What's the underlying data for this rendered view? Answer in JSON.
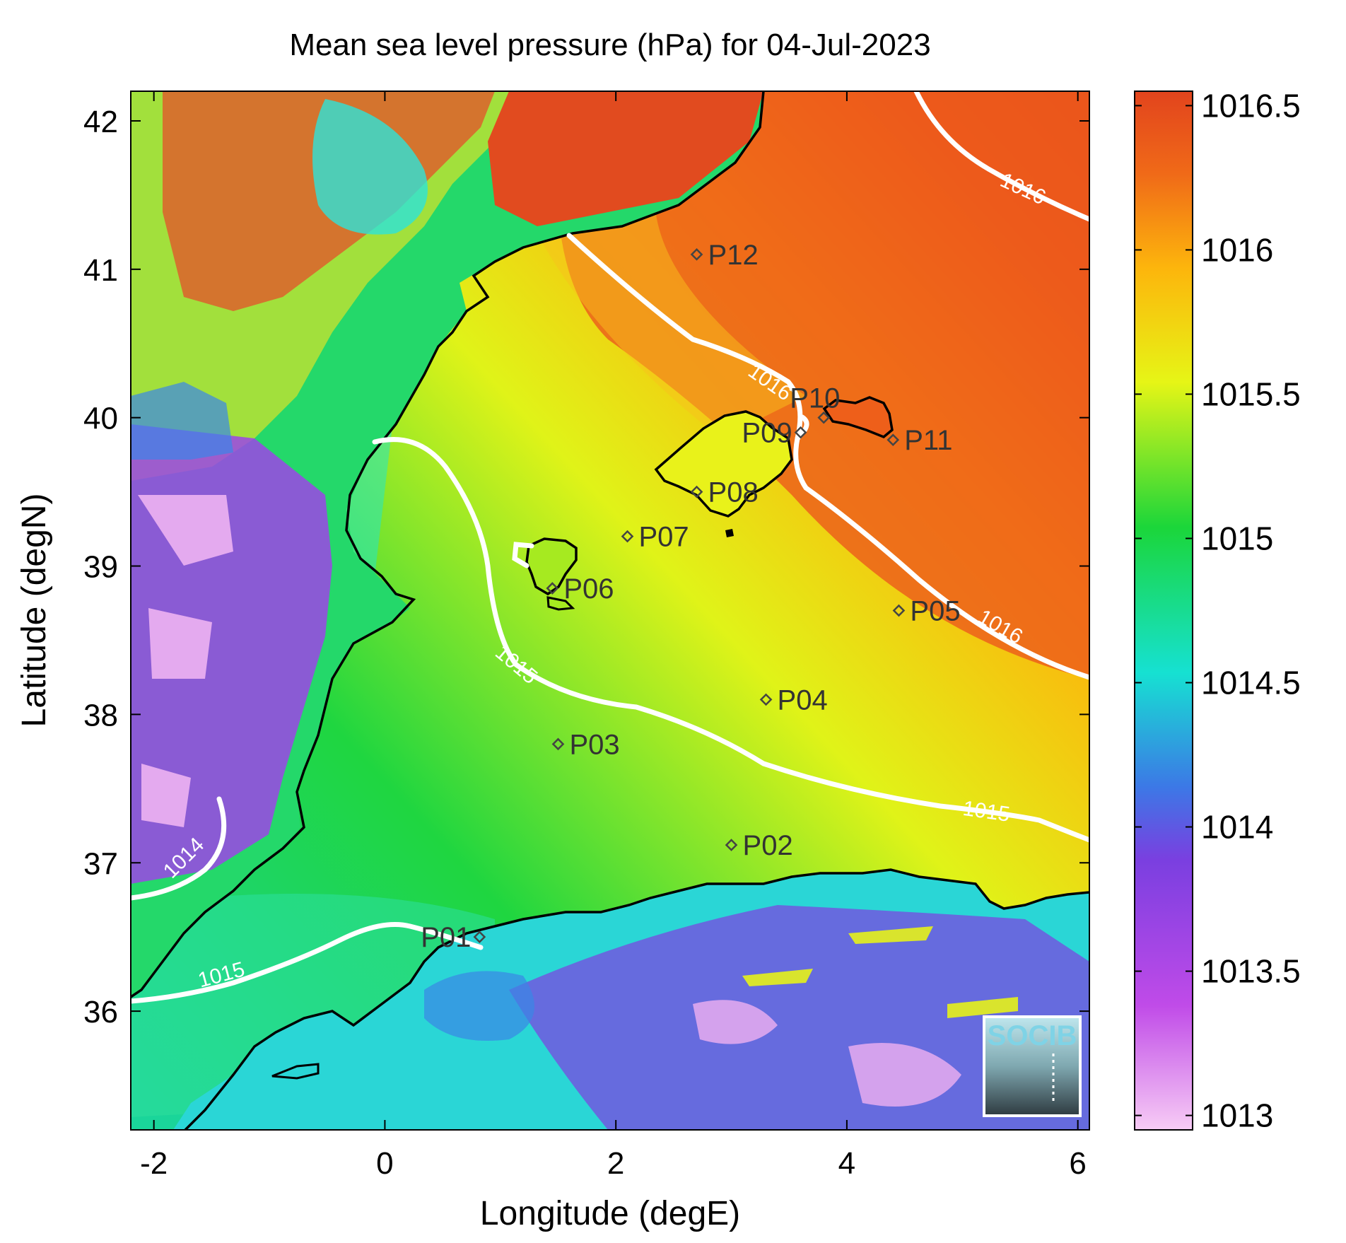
{
  "title": "Mean sea level pressure (hPa) for 04-Jul-2023",
  "axes": {
    "xlabel": "Longitude (degE)",
    "ylabel": "Latitude (degN)",
    "xlim": [
      -2.2,
      6.1
    ],
    "ylim": [
      35.2,
      42.2
    ],
    "xticks": [
      {
        "value": -2,
        "label": "-2"
      },
      {
        "value": 0,
        "label": "0"
      },
      {
        "value": 2,
        "label": "2"
      },
      {
        "value": 4,
        "label": "4"
      },
      {
        "value": 6,
        "label": "6"
      }
    ],
    "yticks": [
      {
        "value": 36,
        "label": "36"
      },
      {
        "value": 37,
        "label": "37"
      },
      {
        "value": 38,
        "label": "38"
      },
      {
        "value": 39,
        "label": "39"
      },
      {
        "value": 40,
        "label": "40"
      },
      {
        "value": 41,
        "label": "41"
      },
      {
        "value": 42,
        "label": "42"
      }
    ]
  },
  "colorbar": {
    "range": [
      1012.95,
      1016.55
    ],
    "ticks": [
      {
        "value": 1013,
        "label": "1013"
      },
      {
        "value": 1013.5,
        "label": "1013.5"
      },
      {
        "value": 1014,
        "label": "1014"
      },
      {
        "value": 1014.5,
        "label": "1014.5"
      },
      {
        "value": 1015,
        "label": "1015"
      },
      {
        "value": 1015.5,
        "label": "1015.5"
      },
      {
        "value": 1016,
        "label": "1016"
      },
      {
        "value": 1016.5,
        "label": "1016.5"
      }
    ],
    "colors": [
      "#f7ccf5",
      "#c04be8",
      "#7a3fe0",
      "#3c78e6",
      "#16e1d2",
      "#1bd63a",
      "#e6f516",
      "#fdb50c",
      "#f06a18",
      "#e2441d"
    ]
  },
  "stations": [
    {
      "name": "P01",
      "lon": 0.82,
      "lat": 36.5,
      "label_side": "left"
    },
    {
      "name": "P02",
      "lon": 3.0,
      "lat": 37.12,
      "label_side": "right"
    },
    {
      "name": "P03",
      "lon": 1.5,
      "lat": 37.8,
      "label_side": "right"
    },
    {
      "name": "P04",
      "lon": 3.3,
      "lat": 38.1,
      "label_side": "right"
    },
    {
      "name": "P05",
      "lon": 4.45,
      "lat": 38.7,
      "label_side": "right"
    },
    {
      "name": "P06",
      "lon": 1.45,
      "lat": 38.85,
      "label_side": "right"
    },
    {
      "name": "P07",
      "lon": 2.1,
      "lat": 39.2,
      "label_side": "right"
    },
    {
      "name": "P08",
      "lon": 2.7,
      "lat": 39.5,
      "label_side": "right"
    },
    {
      "name": "P09",
      "lon": 3.6,
      "lat": 39.9,
      "label_side": "left"
    },
    {
      "name": "P10",
      "lon": 3.8,
      "lat": 40.0,
      "label_side": "above"
    },
    {
      "name": "P11",
      "lon": 4.4,
      "lat": 39.85,
      "label_side": "right"
    },
    {
      "name": "P12",
      "lon": 2.7,
      "lat": 41.1,
      "label_side": "right"
    }
  ],
  "contour_labels": [
    {
      "text": "1016",
      "lon": 5.5,
      "lat": 41.5,
      "angle": 25
    },
    {
      "text": "1016",
      "lon": 3.3,
      "lat": 40.2,
      "angle": 35
    },
    {
      "text": "1016",
      "lon": 5.3,
      "lat": 38.55,
      "angle": 30
    },
    {
      "text": "1015",
      "lon": 1.1,
      "lat": 38.3,
      "angle": 40
    },
    {
      "text": "1015",
      "lon": 5.2,
      "lat": 37.3,
      "angle": 8
    },
    {
      "text": "1015",
      "lon": -1.4,
      "lat": 36.2,
      "angle": -15
    },
    {
      "text": "1014",
      "lon": -1.7,
      "lat": 37.0,
      "angle": -45
    }
  ],
  "logo": {
    "text": "SOCIB"
  }
}
